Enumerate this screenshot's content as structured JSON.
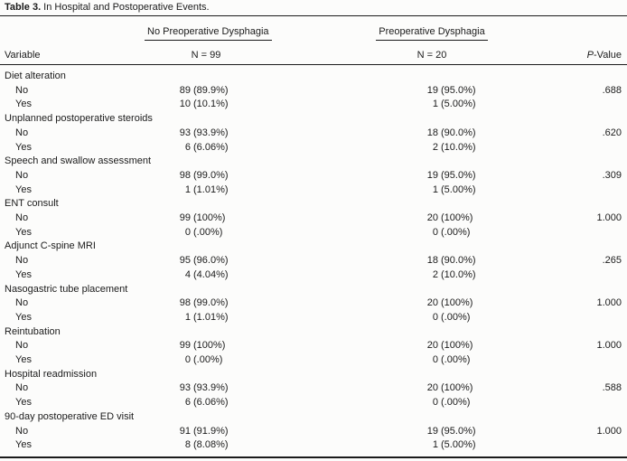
{
  "table": {
    "title": {
      "number": "Table 3.",
      "caption": "In Hospital and Postoperative Events."
    },
    "col_headers": {
      "variable": "Variable",
      "p_italic": "P",
      "p_rest": "-Value"
    },
    "col_groups": {
      "no_dysphagia": {
        "label": "No Preoperative Dysphagia",
        "n": "N = 99"
      },
      "dysphagia": {
        "label": "Preoperative Dysphagia",
        "n": "N = 20"
      }
    },
    "sections": [
      {
        "variable": "Diet alteration",
        "rows": [
          {
            "label": "No",
            "no_dysphagia": "89 (89.9%)",
            "dysphagia": "19 (95.0%)",
            "p_value": ".688"
          },
          {
            "label": "Yes",
            "no_dysphagia": "10 (10.1%)",
            "dysphagia": "1 (5.00%)",
            "p_value": ""
          }
        ]
      },
      {
        "variable": "Unplanned postoperative steroids",
        "rows": [
          {
            "label": "No",
            "no_dysphagia": "93 (93.9%)",
            "dysphagia": "18 (90.0%)",
            "p_value": ".620"
          },
          {
            "label": "Yes",
            "no_dysphagia": "6 (6.06%)",
            "dysphagia": "2 (10.0%)",
            "p_value": ""
          }
        ]
      },
      {
        "variable": "Speech and swallow assessment",
        "rows": [
          {
            "label": "No",
            "no_dysphagia": "98 (99.0%)",
            "dysphagia": "19 (95.0%)",
            "p_value": ".309"
          },
          {
            "label": "Yes",
            "no_dysphagia": "1 (1.01%)",
            "dysphagia": "1 (5.00%)",
            "p_value": ""
          }
        ]
      },
      {
        "variable": "ENT consult",
        "rows": [
          {
            "label": "No",
            "no_dysphagia": "99 (100%)",
            "dysphagia": "20 (100%)",
            "p_value": "1.000"
          },
          {
            "label": "Yes",
            "no_dysphagia": "0 (.00%)",
            "dysphagia": "0 (.00%)",
            "p_value": ""
          }
        ]
      },
      {
        "variable": "Adjunct C-spine MRI",
        "rows": [
          {
            "label": "No",
            "no_dysphagia": "95 (96.0%)",
            "dysphagia": "18 (90.0%)",
            "p_value": ".265"
          },
          {
            "label": "Yes",
            "no_dysphagia": "4 (4.04%)",
            "dysphagia": "2 (10.0%)",
            "p_value": ""
          }
        ]
      },
      {
        "variable": "Nasogastric tube placement",
        "rows": [
          {
            "label": "No",
            "no_dysphagia": "98 (99.0%)",
            "dysphagia": "20 (100%)",
            "p_value": "1.000"
          },
          {
            "label": "Yes",
            "no_dysphagia": "1 (1.01%)",
            "dysphagia": "0 (.00%)",
            "p_value": ""
          }
        ]
      },
      {
        "variable": "Reintubation",
        "rows": [
          {
            "label": "No",
            "no_dysphagia": "99 (100%)",
            "dysphagia": "20 (100%)",
            "p_value": "1.000"
          },
          {
            "label": "Yes",
            "no_dysphagia": "0 (.00%)",
            "dysphagia": "0 (.00%)",
            "p_value": ""
          }
        ]
      },
      {
        "variable": "Hospital readmission",
        "rows": [
          {
            "label": "No",
            "no_dysphagia": "93 (93.9%)",
            "dysphagia": "20 (100%)",
            "p_value": ".588"
          },
          {
            "label": "Yes",
            "no_dysphagia": "6 (6.06%)",
            "dysphagia": "0 (.00%)",
            "p_value": ""
          }
        ]
      },
      {
        "variable": "90-day postoperative ED visit",
        "rows": [
          {
            "label": "No",
            "no_dysphagia": "91 (91.9%)",
            "dysphagia": "19 (95.0%)",
            "p_value": "1.000"
          },
          {
            "label": "Yes",
            "no_dysphagia": "8 (8.08%)",
            "dysphagia": "1 (5.00%)",
            "p_value": ""
          }
        ]
      }
    ]
  }
}
